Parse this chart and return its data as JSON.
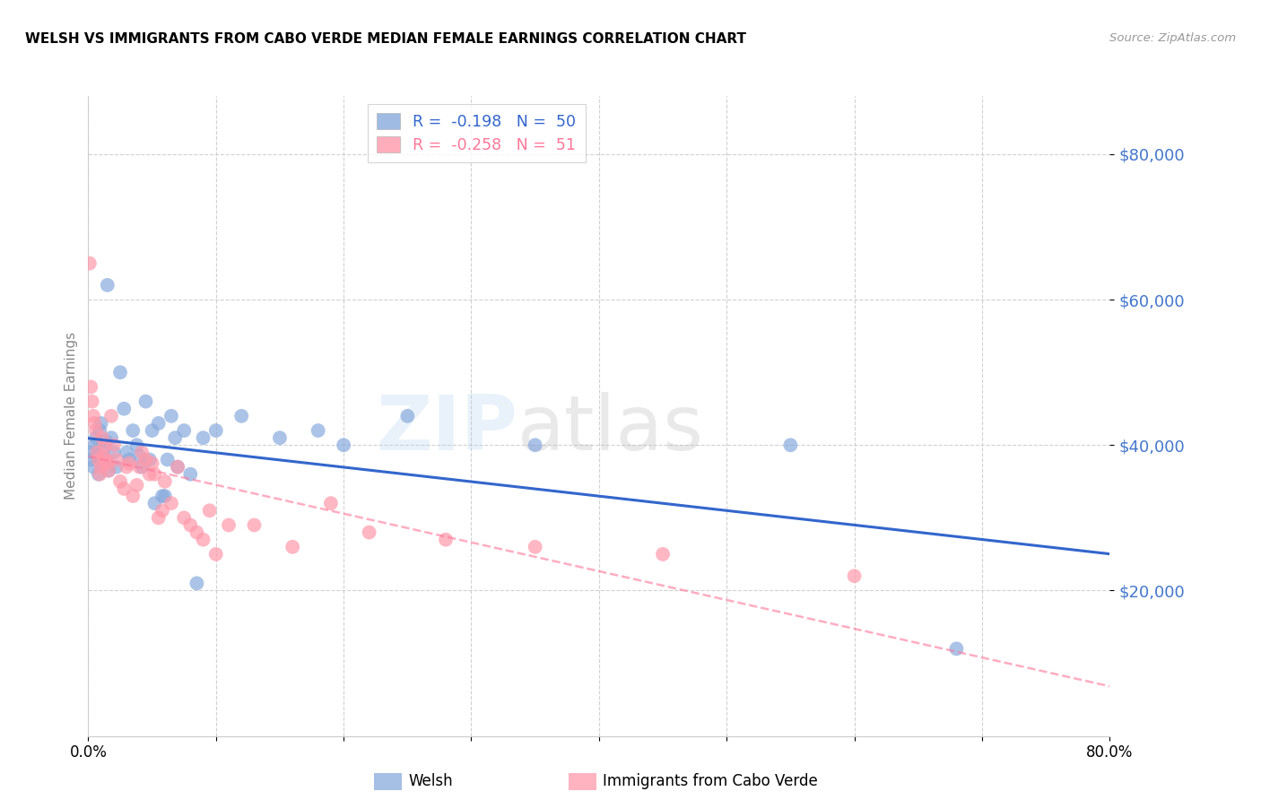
{
  "title": "WELSH VS IMMIGRANTS FROM CABO VERDE MEDIAN FEMALE EARNINGS CORRELATION CHART",
  "source": "Source: ZipAtlas.com",
  "ylabel": "Median Female Earnings",
  "ytick_values": [
    20000,
    40000,
    60000,
    80000
  ],
  "ymin": 0,
  "ymax": 88000,
  "xmin": 0.0,
  "xmax": 0.8,
  "watermark": "ZIPatlas",
  "welsh_color": "#88AADD",
  "cabo_color": "#FF99AA",
  "trendline_welsh_color": "#3366CC",
  "trendline_cabo_color": "#FF7799",
  "ytick_color": "#4477CC",
  "welsh_R": -0.198,
  "welsh_N": 50,
  "cabo_R": -0.258,
  "cabo_N": 51,
  "welsh_scatter_x": [
    0.002,
    0.003,
    0.004,
    0.005,
    0.006,
    0.007,
    0.008,
    0.009,
    0.01,
    0.011,
    0.012,
    0.013,
    0.014,
    0.015,
    0.016,
    0.018,
    0.02,
    0.022,
    0.025,
    0.028,
    0.03,
    0.032,
    0.035,
    0.038,
    0.04,
    0.042,
    0.045,
    0.048,
    0.05,
    0.052,
    0.055,
    0.058,
    0.06,
    0.062,
    0.065,
    0.068,
    0.07,
    0.075,
    0.08,
    0.085,
    0.09,
    0.1,
    0.12,
    0.15,
    0.18,
    0.2,
    0.25,
    0.35,
    0.55,
    0.68
  ],
  "welsh_scatter_y": [
    38000,
    39000,
    37000,
    40000,
    41000,
    38500,
    36000,
    42000,
    43000,
    37500,
    39500,
    38000,
    40500,
    62000,
    36500,
    41000,
    39000,
    37000,
    50000,
    45000,
    39000,
    38000,
    42000,
    40000,
    38500,
    37000,
    46000,
    38000,
    42000,
    32000,
    43000,
    33000,
    33000,
    38000,
    44000,
    41000,
    37000,
    42000,
    36000,
    21000,
    41000,
    42000,
    44000,
    41000,
    42000,
    40000,
    44000,
    40000,
    40000,
    12000
  ],
  "cabo_scatter_x": [
    0.001,
    0.002,
    0.003,
    0.004,
    0.005,
    0.006,
    0.007,
    0.008,
    0.009,
    0.01,
    0.011,
    0.012,
    0.013,
    0.014,
    0.015,
    0.016,
    0.018,
    0.02,
    0.022,
    0.025,
    0.028,
    0.03,
    0.032,
    0.035,
    0.038,
    0.04,
    0.042,
    0.045,
    0.048,
    0.05,
    0.052,
    0.055,
    0.058,
    0.06,
    0.065,
    0.07,
    0.075,
    0.08,
    0.085,
    0.09,
    0.095,
    0.1,
    0.11,
    0.13,
    0.16,
    0.19,
    0.22,
    0.28,
    0.35,
    0.45,
    0.6
  ],
  "cabo_scatter_y": [
    65000,
    48000,
    46000,
    44000,
    43000,
    42000,
    39000,
    38000,
    36000,
    37000,
    41000,
    38500,
    40000,
    38000,
    37500,
    36500,
    44000,
    40000,
    38000,
    35000,
    34000,
    37000,
    37500,
    33000,
    34500,
    37000,
    39000,
    38000,
    36000,
    37500,
    36000,
    30000,
    31000,
    35000,
    32000,
    37000,
    30000,
    29000,
    28000,
    27000,
    31000,
    25000,
    29000,
    29000,
    26000,
    32000,
    28000,
    27000,
    26000,
    25000,
    22000
  ]
}
